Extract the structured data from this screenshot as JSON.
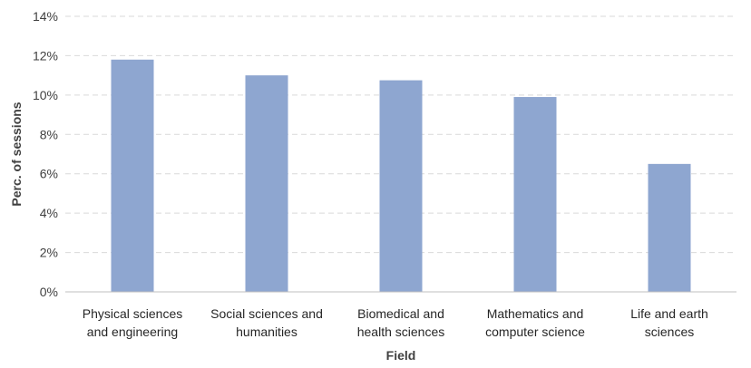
{
  "chart_data": {
    "type": "bar",
    "categories": [
      [
        "Physical sciences",
        "and engineering"
      ],
      [
        "Social sciences and",
        "humanities"
      ],
      [
        "Biomedical and",
        "health sciences"
      ],
      [
        "Mathematics and",
        "computer science"
      ],
      [
        "Life and earth",
        "sciences"
      ]
    ],
    "values": [
      11.8,
      11.0,
      10.75,
      9.9,
      6.5
    ],
    "xlabel": "Field",
    "ylabel": "Perc. of sessions",
    "ylim": [
      0,
      14
    ],
    "yticks": [
      0,
      2,
      4,
      6,
      8,
      10,
      12,
      14
    ],
    "ytick_format": "%",
    "grid": true,
    "bar_color": "#8ea6d0",
    "grid_color": "#d9d9d9",
    "axis_color": "#bfbfbf"
  }
}
